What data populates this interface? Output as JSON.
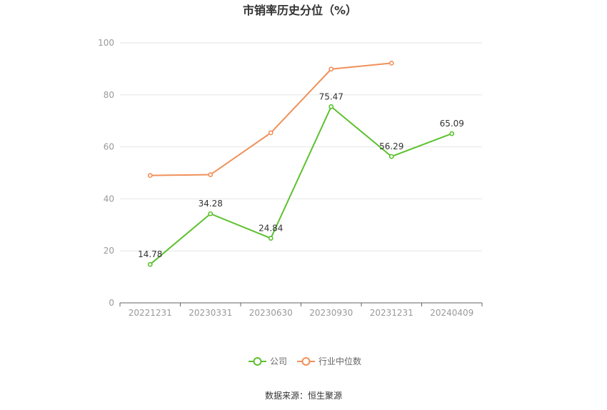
{
  "chart_data": {
    "type": "line",
    "title": "市销率历史分位（%）",
    "categories": [
      "20221231",
      "20230331",
      "20230630",
      "20230930",
      "20231231",
      "20240409"
    ],
    "ylim": [
      0,
      100
    ],
    "yticks": [
      0,
      20,
      40,
      60,
      80,
      100
    ],
    "grid": true,
    "legend_position": "bottom",
    "series": [
      {
        "name": "公司",
        "color": "#5cc12e",
        "values": [
          14.78,
          34.28,
          24.84,
          75.47,
          56.29,
          65.09
        ],
        "labels": [
          "14.78",
          "34.28",
          "24.84",
          "75.47",
          "56.29",
          "65.09"
        ]
      },
      {
        "name": "行业中位数",
        "color": "#f0905a",
        "values": [
          49.0,
          49.3,
          65.4,
          89.9,
          92.2,
          null
        ]
      }
    ]
  },
  "source": "数据来源：恒生聚源"
}
